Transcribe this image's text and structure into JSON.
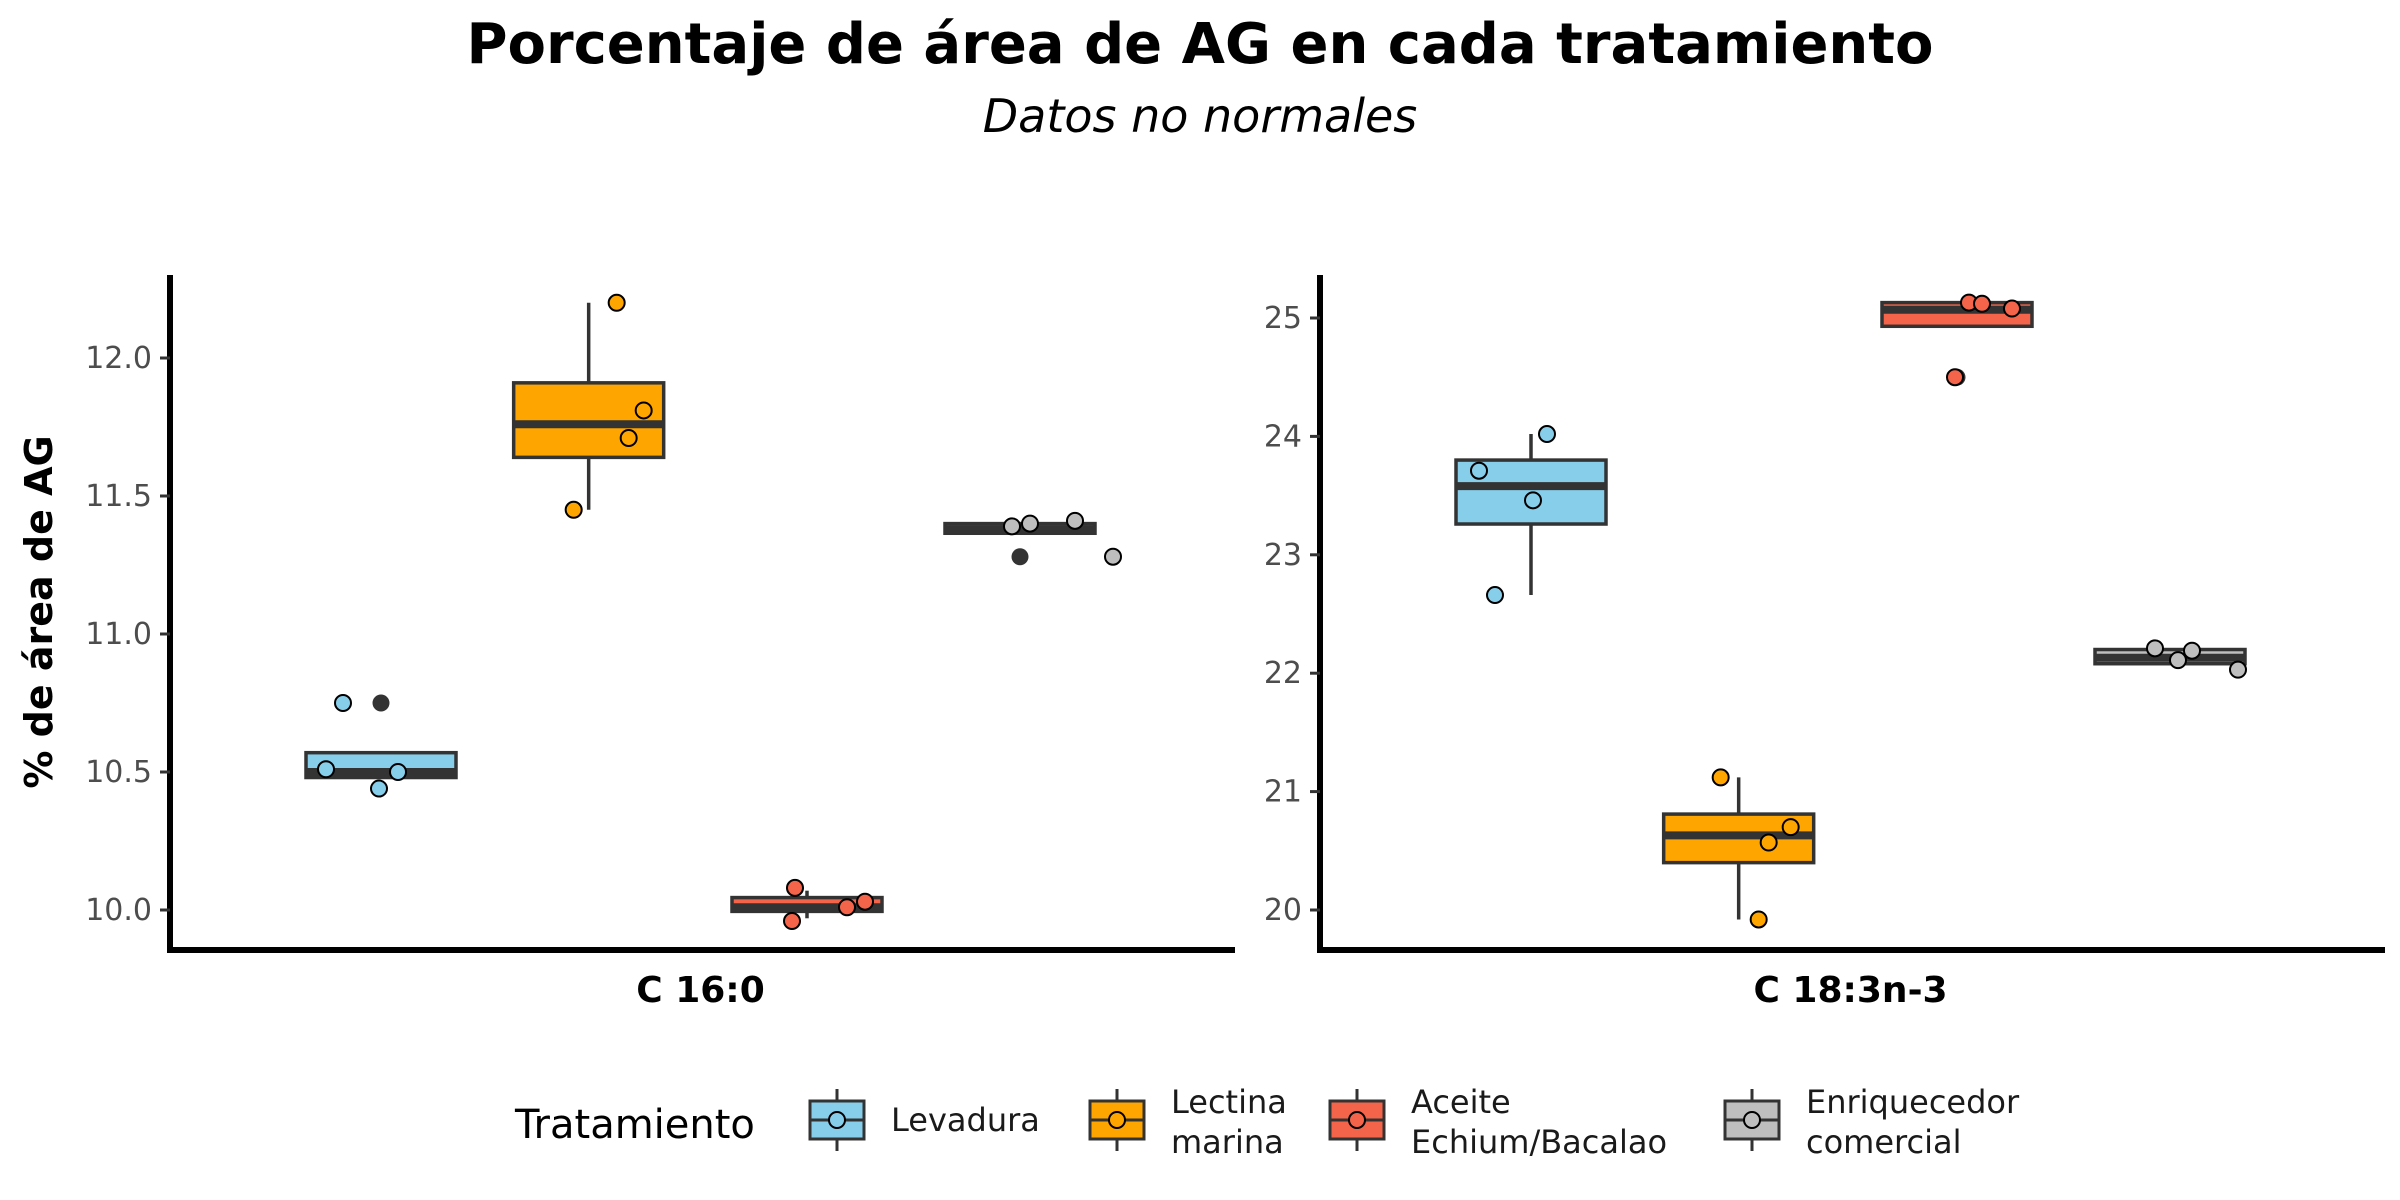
{
  "title": "Porcentaje de área de AG en cada tratamiento",
  "subtitle": "Datos no normales",
  "chart_data": [
    {
      "type": "boxplot",
      "panel": "C 16:0",
      "ylabel": "% de área de AG",
      "ylim": [
        9.85,
        12.3
      ],
      "yticks": [
        10.0,
        10.5,
        11.0,
        11.5,
        12.0
      ],
      "ytick_labels": [
        "10.0",
        "10.5",
        "11.0",
        "11.5",
        "12.0"
      ],
      "series": [
        {
          "name": "Levadura",
          "q1": 10.48,
          "median": 10.5,
          "q3": 10.57,
          "whisker_low": 10.48,
          "whisker_high": 10.57,
          "outliers": [
            10.75
          ],
          "points": [
            10.75,
            10.51,
            10.5,
            10.44
          ]
        },
        {
          "name": "Lectina marina",
          "q1": 11.64,
          "median": 11.76,
          "q3": 11.91,
          "whisker_low": 11.45,
          "whisker_high": 12.2,
          "outliers": [],
          "points": [
            12.2,
            11.81,
            11.71,
            11.45
          ]
        },
        {
          "name": "Aceite Echium/Bacalao",
          "q1": 9.995,
          "median": 10.01,
          "q3": 10.045,
          "whisker_low": 9.97,
          "whisker_high": 10.07,
          "outliers": [],
          "points": [
            10.08,
            10.03,
            10.01,
            9.96
          ]
        },
        {
          "name": "Enriquecedor comercial",
          "q1": 11.365,
          "median": 11.38,
          "q3": 11.4,
          "whisker_low": 11.365,
          "whisker_high": 11.4,
          "outliers": [
            11.28
          ],
          "points": [
            11.41,
            11.4,
            11.39,
            11.28
          ]
        }
      ]
    },
    {
      "type": "boxplot",
      "panel": "C 18:3n-3",
      "ylim": [
        19.65,
        25.4
      ],
      "yticks": [
        20,
        21,
        22,
        23,
        24,
        25
      ],
      "ytick_labels": [
        "20",
        "21",
        "22",
        "23",
        "24",
        "25"
      ],
      "series": [
        {
          "name": "Levadura",
          "q1": 23.26,
          "median": 23.58,
          "q3": 23.8,
          "whisker_low": 22.66,
          "whisker_high": 24.02,
          "outliers": [],
          "points": [
            24.02,
            23.71,
            23.46,
            22.66
          ]
        },
        {
          "name": "Lectina marina",
          "q1": 20.4,
          "median": 20.63,
          "q3": 20.81,
          "whisker_low": 19.92,
          "whisker_high": 21.12,
          "outliers": [],
          "points": [
            21.12,
            20.7,
            20.57,
            19.92
          ]
        },
        {
          "name": "Aceite Echium/Bacalao",
          "q1": 24.93,
          "median": 25.07,
          "q3": 25.13,
          "whisker_low": 24.93,
          "whisker_high": 25.13,
          "outliers": [
            24.5
          ],
          "points": [
            25.13,
            25.12,
            25.08,
            24.5
          ]
        },
        {
          "name": "Enriquecedor comercial",
          "q1": 22.08,
          "median": 22.13,
          "q3": 22.2,
          "whisker_low": 22.08,
          "whisker_high": 22.2,
          "outliers": [],
          "points": [
            22.21,
            22.19,
            22.11,
            22.03
          ]
        }
      ]
    }
  ],
  "legend": {
    "title": "Tratamiento",
    "placement": "bottom",
    "items": [
      {
        "lines": [
          "Levadura"
        ],
        "color": "#87CEEB"
      },
      {
        "lines": [
          "Lectina",
          "marina"
        ],
        "color": "#FFA500"
      },
      {
        "lines": [
          "Aceite",
          "Echium/Bacalao"
        ],
        "color": "#F4644A"
      },
      {
        "lines": [
          "Enriquecedor",
          "comercial"
        ],
        "color": "#BEBEBE"
      }
    ]
  },
  "colors": {
    "Levadura": "#87CEEB",
    "Lectina marina": "#FFA500",
    "Aceite Echium/Bacalao": "#F4644A",
    "Enriquecedor comercial": "#BEBEBE",
    "box_line": "#333333",
    "axis": "#000000"
  }
}
